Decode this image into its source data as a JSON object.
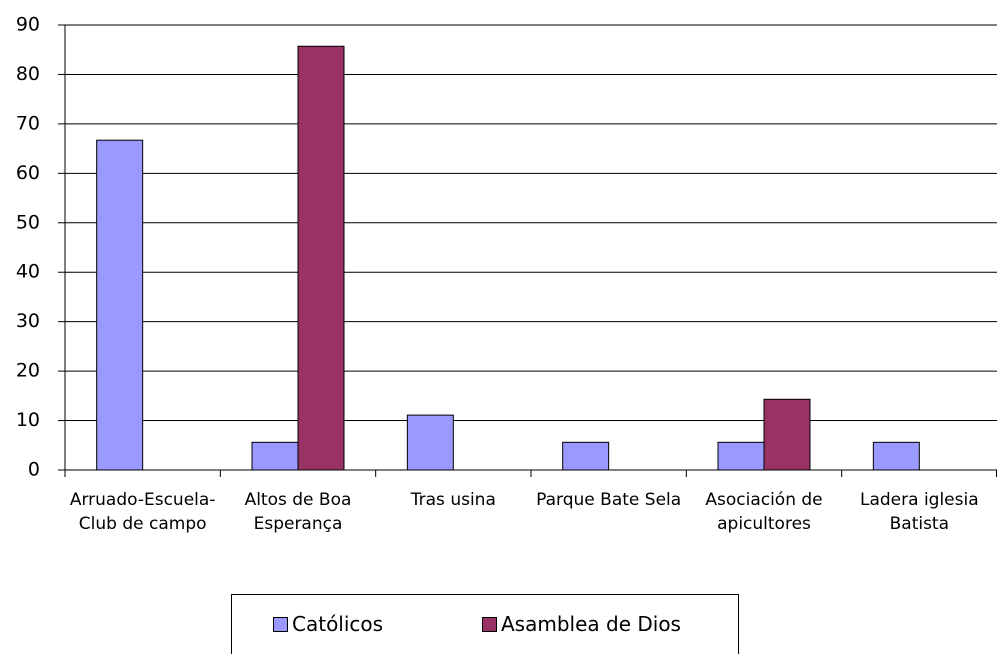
{
  "chart_data": {
    "type": "bar",
    "categories": [
      "Arruado-Escuela- Club de campo",
      "Altos de Boa Esperança",
      "Tras usina",
      "Parque Bate Sela",
      "Asociación de apicultores",
      "Ladera iglesia Batista"
    ],
    "series": [
      {
        "name": "Católicos",
        "color": "#9999ff",
        "values": [
          66.7,
          5.6,
          11.1,
          5.6,
          5.6,
          5.6
        ]
      },
      {
        "name": "Asamblea de Dios",
        "color": "#993366",
        "values": [
          0,
          85.7,
          0,
          0,
          14.3,
          0
        ]
      }
    ],
    "ylim": [
      0,
      90
    ],
    "yticks": [
      0,
      10,
      20,
      30,
      40,
      50,
      60,
      70,
      80,
      90
    ],
    "grid": true,
    "legend": "bottom"
  }
}
